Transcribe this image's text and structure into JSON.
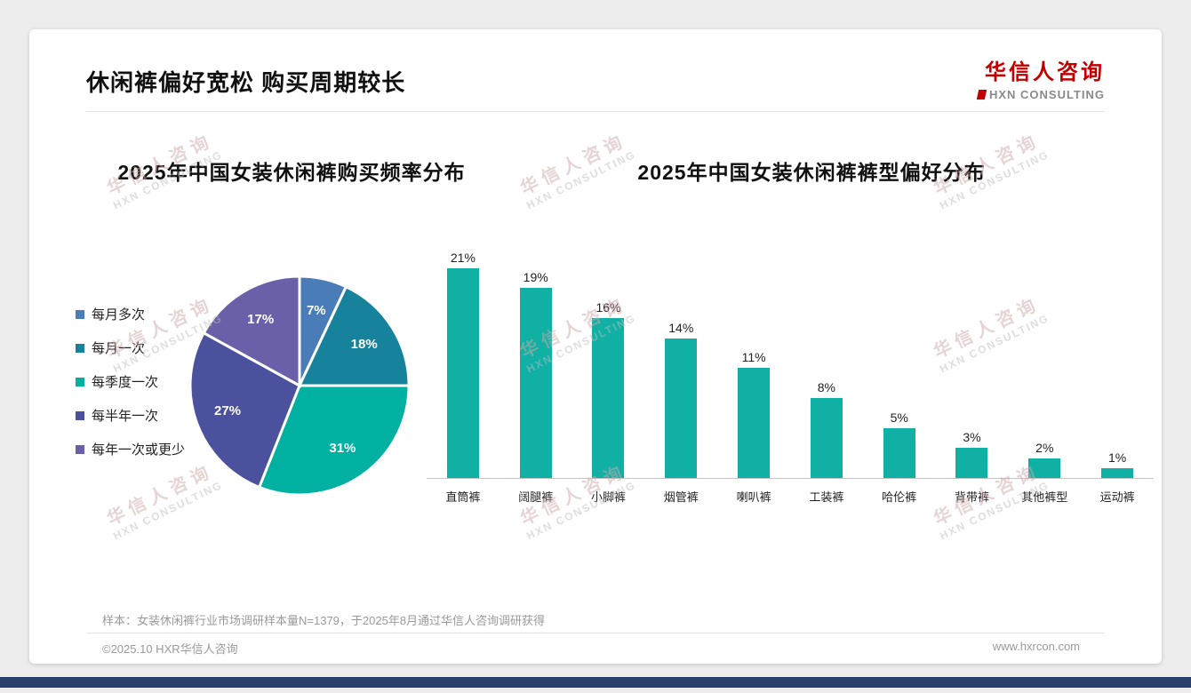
{
  "page": {
    "title": "休闲裤偏好宽松 购买周期较长",
    "footnote": "样本：女装休闲裤行业市场调研样本量N=1379，于2025年8月通过华信人咨询调研获得",
    "footer_left": "©2025.10 HXR华信人咨询",
    "footer_right": "www.hxrcon.com"
  },
  "logo": {
    "name": "华信人咨询",
    "subtitle": "HXN CONSULTING"
  },
  "watermark": {
    "line1": "华信人咨询",
    "line2": "HXN CONSULTING"
  },
  "colors": {
    "accent_red": "#c00000",
    "bottom_bar": "#2a3f6e",
    "bar_teal": "#10b0a5"
  },
  "chart_data": [
    {
      "type": "pie",
      "title": "2025年中国女装休闲裤购买频率分布",
      "labels": [
        "每月多次",
        "每月一次",
        "每季度一次",
        "每半年一次",
        "每年一次或更少"
      ],
      "values": [
        7,
        18,
        31,
        27,
        17
      ],
      "unit": "%",
      "colors": [
        "#4a7db8",
        "#16829b",
        "#00b0a0",
        "#4b519c",
        "#6a60aa"
      ],
      "legend_position": "left",
      "start_angle_deg": -90,
      "direction": "clockwise"
    },
    {
      "type": "bar",
      "title": "2025年中国女装休闲裤裤型偏好分布",
      "categories": [
        "直筒裤",
        "阔腿裤",
        "小脚裤",
        "烟管裤",
        "喇叭裤",
        "工装裤",
        "哈伦裤",
        "背带裤",
        "其他裤型",
        "运动裤"
      ],
      "values": [
        21,
        19,
        16,
        14,
        11,
        8,
        5,
        3,
        2,
        1
      ],
      "unit": "%",
      "ylim": [
        0,
        22
      ],
      "grid": false,
      "bar_color": "#10b0a5"
    }
  ]
}
